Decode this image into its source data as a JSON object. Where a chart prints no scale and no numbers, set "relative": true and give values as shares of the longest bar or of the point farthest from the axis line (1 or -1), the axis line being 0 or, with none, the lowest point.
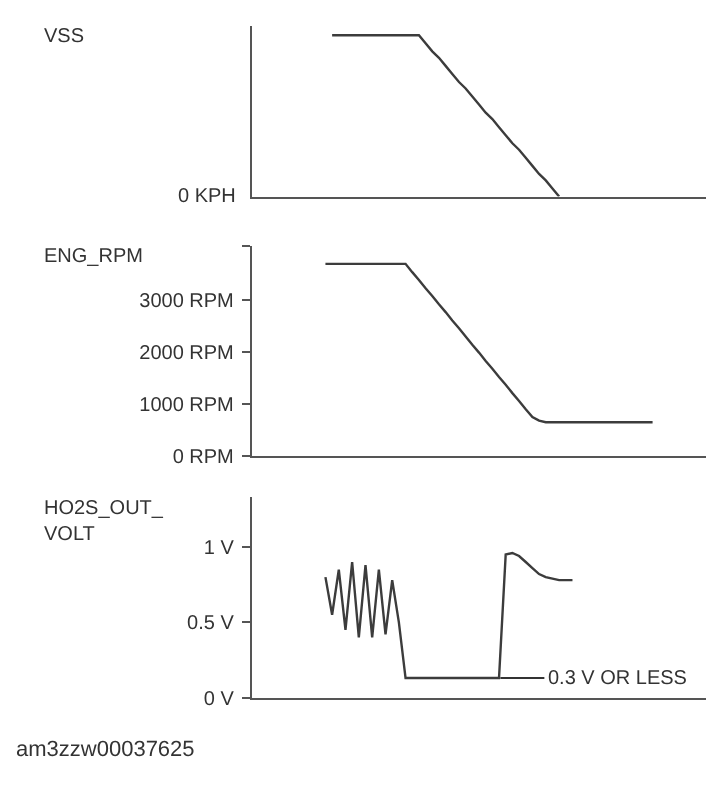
{
  "chart_data": [
    {
      "type": "line",
      "ylabel": "VSS",
      "relative": true,
      "tick_labels": false,
      "marker": "none",
      "line_style": "solid",
      "annotations": [
        "0 KPH"
      ],
      "categories": [
        null,
        null,
        null,
        null,
        null,
        null,
        null,
        null,
        null,
        null,
        null,
        null,
        null,
        null,
        null,
        null,
        null,
        null,
        null,
        null,
        null,
        null,
        null,
        null,
        null,
        null,
        null,
        null,
        null,
        null,
        null,
        null,
        null,
        null,
        null,
        null,
        null,
        null,
        null,
        null,
        null,
        null,
        null,
        null,
        null,
        null,
        null,
        null,
        null,
        null,
        null,
        null,
        null,
        null,
        null,
        null,
        null,
        null,
        null,
        null,
        null,
        null,
        null,
        null,
        null,
        null,
        null,
        null,
        null
      ],
      "series": [
        {
          "color": "#3c3c3c",
          "values": [
            null,
            null,
            null,
            null,
            null,
            null,
            null,
            null,
            null,
            null,
            null,
            null,
            1,
            1,
            1,
            1,
            1,
            1,
            1,
            1,
            1,
            1,
            1,
            1,
            1,
            1,
            0.95,
            0.9,
            0.86,
            0.81,
            0.76,
            0.71,
            0.67,
            0.62,
            0.57,
            0.52,
            0.48,
            0.43,
            0.38,
            0.33,
            0.29,
            0.24,
            0.19,
            0.14,
            0.1,
            0.05,
            0,
            null,
            null,
            null,
            null,
            null,
            null,
            null,
            null,
            null,
            null,
            null,
            null,
            null,
            null,
            null,
            null,
            null,
            null,
            null,
            null,
            null,
            null
          ]
        }
      ]
    },
    {
      "type": "line",
      "ylabel": "ENG_RPM",
      "tick_labels": "y",
      "marker": "none",
      "line_style": "solid",
      "ylim": [
        0,
        4050
      ],
      "yticks": [
        {
          "value": 0,
          "label": "0 RPM"
        },
        {
          "value": 1000,
          "label": "1000 RPM"
        },
        {
          "value": 2000,
          "label": "2000 RPM"
        },
        {
          "value": 3000,
          "label": "3000 RPM"
        },
        {
          "value": 4050,
          "label": null
        }
      ],
      "categories": [
        null,
        null,
        null,
        null,
        null,
        null,
        null,
        null,
        null,
        null,
        null,
        null,
        null,
        null,
        null,
        null,
        null,
        null,
        null,
        null,
        null,
        null,
        null,
        null,
        null,
        null,
        null,
        null,
        null,
        null,
        null,
        null,
        null,
        null,
        null,
        null,
        null,
        null,
        null,
        null,
        null,
        null,
        null,
        null,
        null,
        null,
        null,
        null,
        null,
        null,
        null,
        null,
        null,
        null,
        null,
        null,
        null,
        null,
        null,
        null,
        null,
        null,
        null,
        null,
        null,
        null,
        null,
        null,
        null
      ],
      "series": [
        {
          "color": "#3c3c3c",
          "values": [
            null,
            null,
            null,
            null,
            null,
            null,
            null,
            null,
            null,
            null,
            null,
            3700,
            3700,
            3700,
            3700,
            3700,
            3700,
            3700,
            3700,
            3700,
            3700,
            3700,
            3700,
            3700,
            3540,
            3390,
            3230,
            3080,
            2920,
            2770,
            2610,
            2460,
            2300,
            2140,
            1990,
            1830,
            1680,
            1520,
            1370,
            1210,
            1060,
            900,
            750,
            680,
            650,
            650,
            650,
            650,
            650,
            650,
            650,
            650,
            650,
            650,
            650,
            650,
            650,
            650,
            650,
            650,
            650,
            null,
            null,
            null,
            null,
            null,
            null,
            null,
            null
          ]
        }
      ]
    },
    {
      "type": "line",
      "ylabel": "HO2S_OUT_\nVOLT",
      "tick_labels": "y",
      "marker": "none",
      "line_style": "solid",
      "ylim": [
        0,
        1.33
      ],
      "yticks": [
        {
          "value": 0,
          "label": "0 V"
        },
        {
          "value": 0.5,
          "label": "0.5 V"
        },
        {
          "value": 1,
          "label": "1 V"
        }
      ],
      "annotations": [
        "0.3 V OR LESS",
        "am3zzw00037625"
      ],
      "categories": [
        null,
        null,
        null,
        null,
        null,
        null,
        null,
        null,
        null,
        null,
        null,
        null,
        null,
        null,
        null,
        null,
        null,
        null,
        null,
        null,
        null,
        null,
        null,
        null,
        null,
        null,
        null,
        null,
        null,
        null,
        null,
        null,
        null,
        null,
        null,
        null,
        null,
        null,
        null,
        null,
        null,
        null,
        null,
        null,
        null,
        null,
        null,
        null,
        null,
        null,
        null,
        null,
        null,
        null,
        null,
        null,
        null,
        null,
        null,
        null,
        null,
        null,
        null,
        null,
        null,
        null,
        null,
        null,
        null
      ],
      "series": [
        {
          "color": "#3c3c3c",
          "values": [
            null,
            null,
            null,
            null,
            null,
            null,
            null,
            null,
            null,
            null,
            null,
            0.8,
            0.55,
            0.85,
            0.45,
            0.9,
            0.4,
            0.88,
            0.4,
            0.85,
            0.42,
            0.78,
            0.5,
            0.13,
            0.13,
            0.13,
            0.13,
            0.13,
            0.13,
            0.13,
            0.13,
            0.13,
            0.13,
            0.13,
            0.13,
            0.13,
            0.13,
            0.13,
            0.95,
            0.96,
            0.94,
            0.9,
            0.86,
            0.82,
            0.8,
            0.79,
            0.78,
            0.78,
            0.78,
            null,
            null,
            null,
            null,
            null,
            null,
            null,
            null,
            null,
            null,
            null,
            null,
            null,
            null,
            null,
            null,
            null,
            null,
            null,
            null
          ]
        }
      ]
    }
  ]
}
